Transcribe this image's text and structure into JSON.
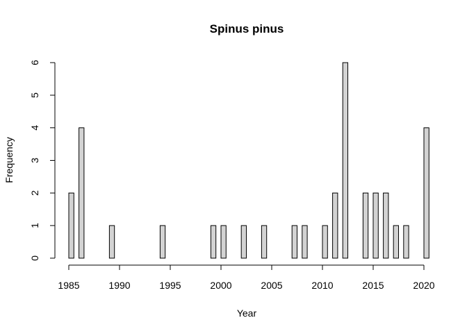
{
  "chart_data": {
    "type": "bar",
    "title": "Spinus pinus",
    "xlabel": "Year",
    "ylabel": "Frequency",
    "x": [
      1985,
      1986,
      1987,
      1988,
      1989,
      1990,
      1991,
      1992,
      1993,
      1994,
      1995,
      1996,
      1997,
      1998,
      1999,
      2000,
      2001,
      2002,
      2003,
      2004,
      2005,
      2006,
      2007,
      2008,
      2009,
      2010,
      2011,
      2012,
      2013,
      2014,
      2015,
      2016,
      2017,
      2018,
      2019,
      2020
    ],
    "values": [
      2,
      4,
      0,
      0,
      1,
      0,
      0,
      0,
      0,
      1,
      0,
      0,
      0,
      0,
      1,
      1,
      0,
      1,
      0,
      1,
      0,
      0,
      1,
      1,
      0,
      1,
      2,
      6,
      0,
      2,
      2,
      2,
      1,
      1,
      0,
      4
    ],
    "xlim": [
      1985,
      2020
    ],
    "ylim": [
      0,
      6
    ],
    "xticks": [
      "1985",
      "1990",
      "1995",
      "2000",
      "2005",
      "2010",
      "2015",
      "2020"
    ],
    "yticks": [
      "0",
      "1",
      "2",
      "3",
      "4",
      "5",
      "6"
    ],
    "grid": false,
    "legend": "none"
  }
}
